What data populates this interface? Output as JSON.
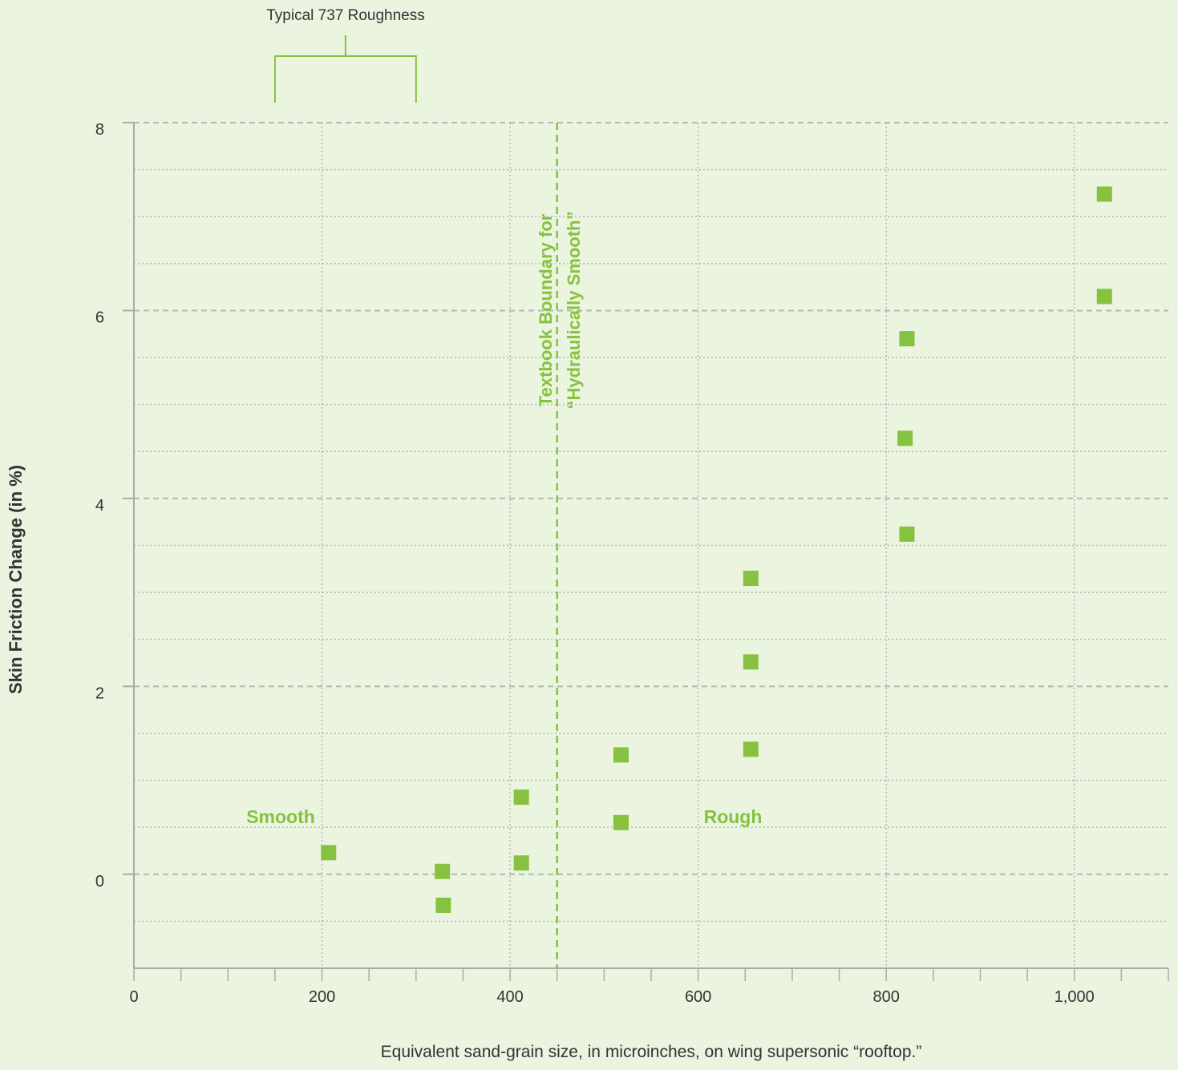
{
  "colors": {
    "background": "#ebf4df",
    "accent": "#86c240",
    "grid": "#b4b8b4",
    "axis": "#a9aca9",
    "text": "#333333"
  },
  "chart_data": {
    "type": "scatter",
    "title": "",
    "xlabel": "Equivalent sand-grain size, in microinches, on wing supersonic “rooftop.”",
    "ylabel": "Skin Friction Change (in %)",
    "xlim": [
      0,
      1100
    ],
    "ylim": [
      -1,
      8
    ],
    "x_ticks": [
      0,
      200,
      400,
      600,
      800,
      1000
    ],
    "x_tick_labels": [
      "0",
      "200",
      "400",
      "600",
      "800",
      "1,000"
    ],
    "y_ticks": [
      0,
      2,
      4,
      6,
      8
    ],
    "y_tick_labels": [
      "0",
      "2",
      "4",
      "6",
      "8"
    ],
    "grid": true,
    "legend": "none",
    "marker": "square",
    "points": [
      {
        "x": 207,
        "y": 0.23
      },
      {
        "x": 328,
        "y": 0.03
      },
      {
        "x": 329,
        "y": -0.33
      },
      {
        "x": 412,
        "y": 0.82
      },
      {
        "x": 412,
        "y": 0.12
      },
      {
        "x": 518,
        "y": 1.27
      },
      {
        "x": 518,
        "y": 0.55
      },
      {
        "x": 656,
        "y": 3.15
      },
      {
        "x": 656,
        "y": 2.26
      },
      {
        "x": 656,
        "y": 1.33
      },
      {
        "x": 822,
        "y": 5.7
      },
      {
        "x": 820,
        "y": 4.64
      },
      {
        "x": 822,
        "y": 3.62
      },
      {
        "x": 1032,
        "y": 7.24
      },
      {
        "x": 1032,
        "y": 6.15
      }
    ],
    "boundary": {
      "x": 450,
      "label_line1": "Textbook Boundary for",
      "label_line2": "“Hydraulically Smooth”"
    },
    "annotations": {
      "smooth": "Smooth",
      "rough": "Rough",
      "bracket_label": "Typical 737 Roughness",
      "bracket_range": [
        150,
        300
      ]
    }
  }
}
